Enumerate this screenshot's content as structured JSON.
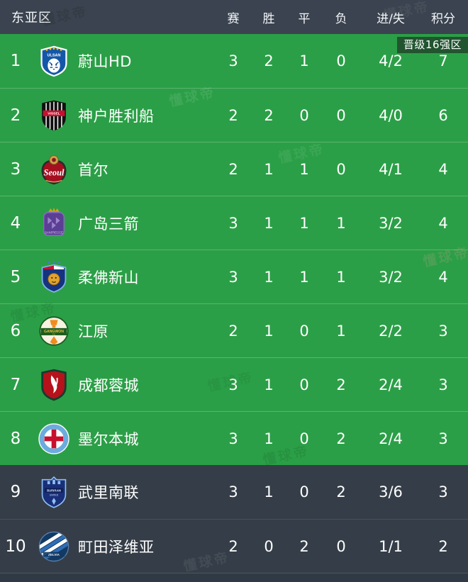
{
  "header": {
    "title": "东亚区",
    "columns": [
      "赛",
      "胜",
      "平",
      "负",
      "进/失",
      "积分"
    ]
  },
  "qualification_badge": "晋级16强区",
  "watermark_text": "懂球帝",
  "colors": {
    "qualified_zone_green": "#2b9f47",
    "header_bar": "#3a434f",
    "non_qualified_row": "#353e48",
    "badge_background": "rgba(28,38,32,0.62)",
    "text": "#ffffff"
  },
  "standings": [
    {
      "rank": "1",
      "team": "蔚山HD",
      "logo": "ulsan",
      "played": "3",
      "won": "2",
      "drawn": "1",
      "lost": "0",
      "goals": "4/2",
      "points": "7",
      "zone": "qualified"
    },
    {
      "rank": "2",
      "team": "神户胜利船",
      "logo": "kobe",
      "played": "2",
      "won": "2",
      "drawn": "0",
      "lost": "0",
      "goals": "4/0",
      "points": "6",
      "zone": "qualified"
    },
    {
      "rank": "3",
      "team": "首尔",
      "logo": "seoul",
      "played": "2",
      "won": "1",
      "drawn": "1",
      "lost": "0",
      "goals": "4/1",
      "points": "4",
      "zone": "qualified"
    },
    {
      "rank": "4",
      "team": "广岛三箭",
      "logo": "hiroshima",
      "played": "3",
      "won": "1",
      "drawn": "1",
      "lost": "1",
      "goals": "3/2",
      "points": "4",
      "zone": "qualified"
    },
    {
      "rank": "5",
      "team": "柔佛新山",
      "logo": "jdt",
      "played": "3",
      "won": "1",
      "drawn": "1",
      "lost": "1",
      "goals": "3/2",
      "points": "4",
      "zone": "qualified"
    },
    {
      "rank": "6",
      "team": "江原",
      "logo": "gangwon",
      "played": "2",
      "won": "1",
      "drawn": "0",
      "lost": "1",
      "goals": "2/2",
      "points": "3",
      "zone": "qualified"
    },
    {
      "rank": "7",
      "team": "成都蓉城",
      "logo": "chengdu",
      "played": "3",
      "won": "1",
      "drawn": "0",
      "lost": "2",
      "goals": "2/4",
      "points": "3",
      "zone": "qualified"
    },
    {
      "rank": "8",
      "team": "墨尔本城",
      "logo": "melbourne",
      "played": "3",
      "won": "1",
      "drawn": "0",
      "lost": "2",
      "goals": "2/4",
      "points": "3",
      "zone": "qualified"
    },
    {
      "rank": "9",
      "team": "武里南联",
      "logo": "buriram",
      "played": "3",
      "won": "1",
      "drawn": "0",
      "lost": "2",
      "goals": "3/6",
      "points": "3",
      "zone": "other"
    },
    {
      "rank": "10",
      "team": "町田泽维亚",
      "logo": "machida",
      "played": "2",
      "won": "0",
      "drawn": "2",
      "lost": "0",
      "goals": "1/1",
      "points": "2",
      "zone": "other"
    }
  ]
}
